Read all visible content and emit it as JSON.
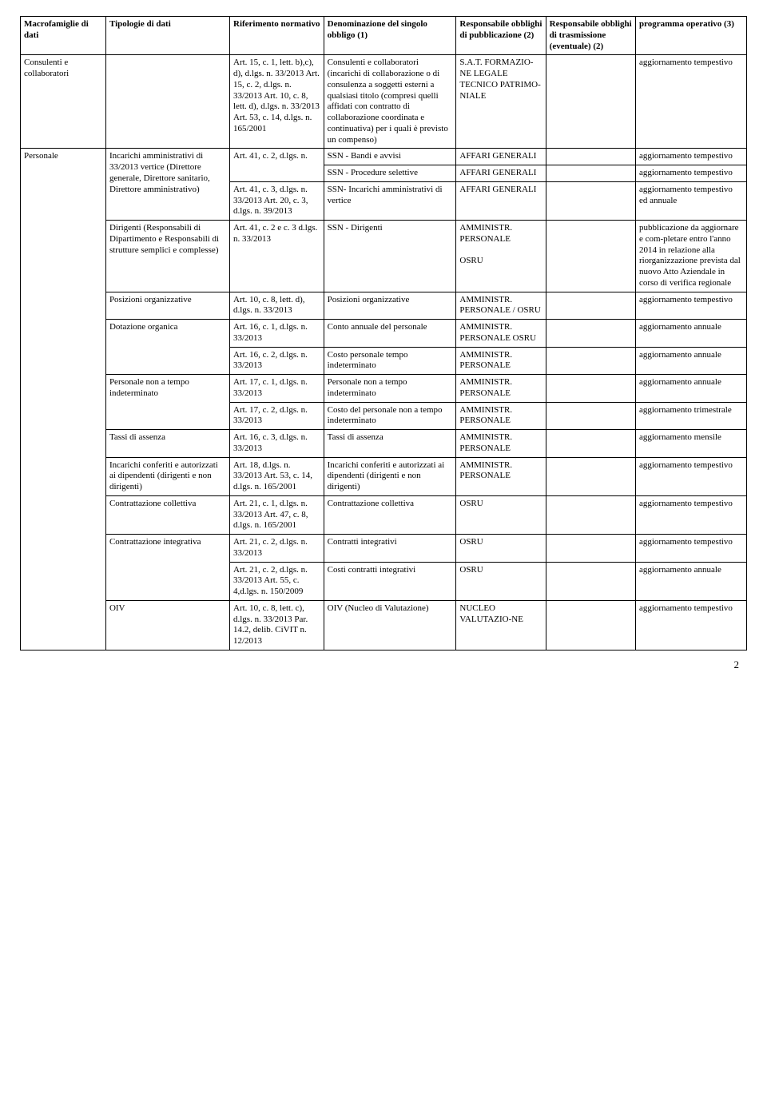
{
  "headers": {
    "macro": "Macrofamiglie di dati",
    "tipo": "Tipologie di dati",
    "rif": "Riferimento normativo",
    "denom": "Denominazione del singolo obbligo (1)",
    "resp_pub": "Responsabile obblighi di pubblicazione (2)",
    "resp_tras": "Responsabile obblighi di trasmissione (eventuale) (2)",
    "prog": "programma operativo (3)"
  },
  "macrofamiglie": {
    "consulenti": "Consulenti e collaboratori",
    "personale": "Personale"
  },
  "rows": {
    "r1": {
      "tipo": "",
      "rif": "Art. 15, c. 1, lett. b),c), d), d.lgs. n. 33/2013 Art. 15, c. 2, d.lgs. n. 33/2013 Art. 10, c. 8, lett. d), d.lgs. n. 33/2013 Art. 53, c. 14, d.lgs. n. 165/2001",
      "denom": "Consulenti e collaboratori (incarichi di collaborazione o di consulenza a soggetti esterni a qualsiasi titolo (compresi quelli affidati con contratto di collaborazione coordinata e continuativa) per i quali è previsto un compenso)",
      "resp_pub": "S.A.T. FORMAZIO-NE LEGALE TECNICO PATRIMO-NIALE",
      "resp_tras": "",
      "prog": "aggiornamento tempestivo"
    },
    "r2": {
      "tipo": "Incarichi amministrativi di 33/2013 vertice (Direttore generale, Direttore sanitario, Direttore amministrativo)",
      "rif": "Art. 41, c. 2, d.lgs. n.",
      "denom": "SSN - Bandi e avvisi",
      "resp_pub": "AFFARI GENERALI",
      "resp_tras": "",
      "prog": "aggiornamento tempestivo"
    },
    "r3": {
      "denom": "SSN - Procedure selettive",
      "resp_pub": "AFFARI GENERALI",
      "resp_tras": "",
      "prog": "aggiornamento tempestivo"
    },
    "r4": {
      "rif": "Art. 41, c. 3, d.lgs. n. 33/2013 Art. 20, c. 3, d.lgs. n. 39/2013",
      "denom": "SSN- Incarichi amministrativi di vertice",
      "resp_pub": "AFFARI GENERALI",
      "resp_tras": "",
      "prog": "aggiornamento tempestivo ed annuale"
    },
    "r5": {
      "tipo": "Dirigenti (Responsabili di Dipartimento e Responsabili di strutture semplici e complesse)",
      "rif": "Art. 41, c. 2 e c. 3 d.lgs. n. 33/2013",
      "denom": "SSN - Dirigenti",
      "resp_pub": "AMMINISTR. PERSONALE\n\nOSRU",
      "resp_tras": "",
      "prog": "pubblicazione da aggiornare  e com-pletare entro l'anno 2014 in relazione alla riorganizzazione prevista dal nuovo Atto Aziendale in corso di verifica regionale"
    },
    "r6": {
      "tipo": "Posizioni organizzative",
      "rif": "Art. 10, c. 8, lett. d), d.lgs. n. 33/2013",
      "denom": "Posizioni organizzative",
      "resp_pub": "AMMINISTR. PERSONALE / OSRU",
      "resp_tras": "",
      "prog": "aggiornamento tempestivo"
    },
    "r7": {
      "tipo": "Dotazione organica",
      "rif": "Art. 16, c. 1, d.lgs. n. 33/2013",
      "denom": "Conto annuale del personale",
      "resp_pub": "AMMINISTR. PERSONALE OSRU",
      "resp_tras": "",
      "prog": "aggiornamento annuale"
    },
    "r8": {
      "rif": "Art. 16, c. 2, d.lgs. n. 33/2013",
      "denom": "Costo personale tempo indeterminato",
      "resp_pub": "AMMINISTR. PERSONALE",
      "resp_tras": "",
      "prog": "aggiornamento annuale"
    },
    "r9": {
      "tipo": "Personale non a tempo indeterminato",
      "rif": "Art. 17, c. 1, d.lgs. n. 33/2013",
      "denom": "Personale non a tempo indeterminato",
      "resp_pub": "AMMINISTR. PERSONALE",
      "resp_tras": "",
      "prog": "aggiornamento annuale"
    },
    "r10": {
      "rif": "Art. 17, c. 2, d.lgs. n. 33/2013",
      "denom": "Costo del personale non a tempo indeterminato",
      "resp_pub": "AMMINISTR. PERSONALE",
      "resp_tras": "",
      "prog": "aggiornamento trimestrale"
    },
    "r11": {
      "tipo": "Tassi di assenza",
      "rif": "Art. 16, c. 3, d.lgs. n. 33/2013",
      "denom": "Tassi di assenza",
      "resp_pub": "AMMINISTR. PERSONALE",
      "resp_tras": "",
      "prog": "aggiornamento mensile"
    },
    "r12": {
      "tipo": "Incarichi conferiti e autorizzati ai dipendenti (dirigenti e non dirigenti)",
      "rif": "Art. 18, d.lgs. n. 33/2013 Art. 53, c. 14, d.lgs. n. 165/2001",
      "denom": "Incarichi  conferiti e autorizzati ai dipendenti (dirigenti e non dirigenti)",
      "resp_pub": "AMMINISTR. PERSONALE",
      "resp_tras": "",
      "prog": "aggiornamento tempestivo"
    },
    "r13": {
      "tipo": "Contrattazione collettiva",
      "rif": "Art. 21, c. 1, d.lgs. n. 33/2013 Art. 47, c. 8, d.lgs. n. 165/2001",
      "denom": "Contrattazione collettiva",
      "resp_pub": "OSRU",
      "resp_tras": "",
      "prog": "aggiornamento tempestivo"
    },
    "r14": {
      "tipo": "Contrattazione integrativa",
      "rif": "Art. 21, c. 2, d.lgs. n. 33/2013",
      "denom": "Contratti integrativi",
      "resp_pub": "OSRU",
      "resp_tras": "",
      "prog": "aggiornamento tempestivo"
    },
    "r15": {
      "rif": "Art. 21, c. 2, d.lgs. n. 33/2013 Art. 55, c. 4,d.lgs. n. 150/2009",
      "denom": "Costi contratti integrativi",
      "resp_pub": "OSRU",
      "resp_tras": "",
      "prog": "aggiornamento annuale"
    },
    "r16": {
      "tipo": "OIV",
      "rif": "Art. 10, c. 8, lett. c), d.lgs. n. 33/2013 Par. 14.2, delib. CiVIT n. 12/2013",
      "denom": "OIV (Nucleo di Valutazione)",
      "resp_pub": "NUCLEO VALUTAZIO-NE",
      "resp_tras": "",
      "prog": "aggiornamento tempestivo"
    }
  },
  "page_number": "2"
}
